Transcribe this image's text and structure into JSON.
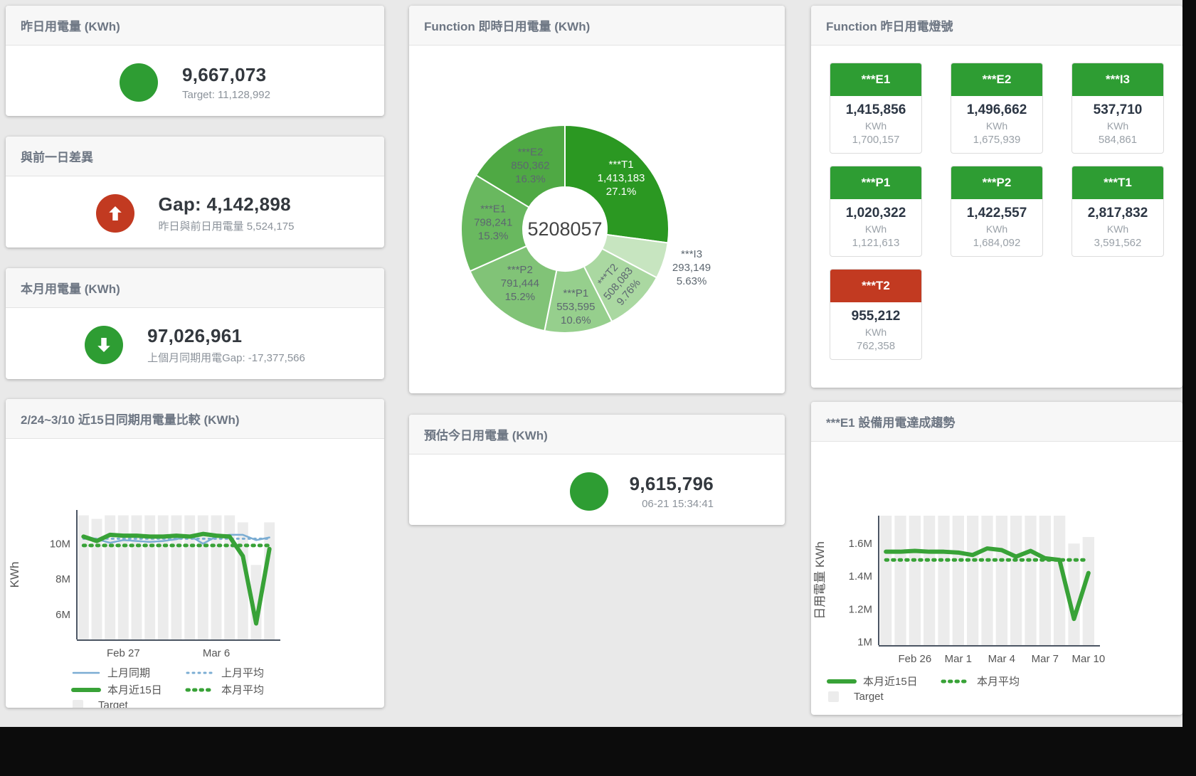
{
  "colors": {
    "green": "#2e9d33",
    "red": "#c23a21",
    "page_bg": "#e9e9e9",
    "card_header_bg": "#f7f7f7",
    "title_text": "#6d7683",
    "value_text": "#33383e",
    "muted_text": "#8b929a",
    "target_bar": "#ececec",
    "blue_line": "#7badd3",
    "green_line": "#38a237"
  },
  "kpi": {
    "yesterday": {
      "title": "昨日用電量 (KWh)",
      "value": "9,667,073",
      "subtitle": "Target: 11,128,992",
      "icon": "circle-green"
    },
    "gap": {
      "title": "與前一日差異",
      "value": "Gap: 4,142,898",
      "subtitle": "昨日與前日用電量 5,524,175",
      "icon": "arrow-up-red"
    },
    "month": {
      "title": "本月用電量 (KWh)",
      "value": "97,026,961",
      "subtitle": "上個月同期用電Gap: -17,377,566",
      "icon": "arrow-down-green"
    },
    "estimate": {
      "title": "預估今日用電量 (KWh)",
      "value": "9,615,796",
      "subtitle": "06-21 15:34:41",
      "icon": "circle-green"
    }
  },
  "status": {
    "title": "Function 昨日用電燈號",
    "tiles": [
      {
        "name": "***E1",
        "value": "1,415,856",
        "unit": "KWh",
        "target": "1,700,157",
        "status_color": "#2e9d33"
      },
      {
        "name": "***E2",
        "value": "1,496,662",
        "unit": "KWh",
        "target": "1,675,939",
        "status_color": "#2e9d33"
      },
      {
        "name": "***I3",
        "value": "537,710",
        "unit": "KWh",
        "target": "584,861",
        "status_color": "#2e9d33"
      },
      {
        "name": "***P1",
        "value": "1,020,322",
        "unit": "KWh",
        "target": "1,121,613",
        "status_color": "#2e9d33"
      },
      {
        "name": "***P2",
        "value": "1,422,557",
        "unit": "KWh",
        "target": "1,684,092",
        "status_color": "#2e9d33"
      },
      {
        "name": "***T1",
        "value": "2,817,832",
        "unit": "KWh",
        "target": "3,591,562",
        "status_color": "#2e9d33"
      },
      {
        "name": "***T2",
        "value": "955,212",
        "unit": "KWh",
        "target": "762,358",
        "status_color": "#c23a21"
      }
    ]
  },
  "chart_data": [
    {
      "type": "pie",
      "title": "Function 即時日用電量 (KWh)",
      "center_label": "5208057",
      "total": 5208057,
      "start": "top-clockwise",
      "segments": [
        {
          "name": "***T1",
          "value": 1413183,
          "value_str": "1,413,183",
          "pct": "27.1%",
          "color": "#2b9822",
          "label_style": "light",
          "label_r": 105
        },
        {
          "name": "***I3",
          "value": 293149,
          "value_str": "293,149",
          "pct": "5.63%",
          "color": "#c7e5c0",
          "label_r": 187,
          "outside": true
        },
        {
          "name": "***T2",
          "value": 508083,
          "value_str": "508,083",
          "pct": "9.76%",
          "color": "#aad8a1",
          "label_r": 110,
          "rotate": -50
        },
        {
          "name": "***P1",
          "value": 553595,
          "value_str": "553,595",
          "pct": "10.6%",
          "color": "#96cf8d",
          "label_r": 113
        },
        {
          "name": "***P2",
          "value": 791444,
          "value_str": "791,444",
          "pct": "15.2%",
          "color": "#81c377",
          "label_r": 101
        },
        {
          "name": "***E1",
          "value": 798241,
          "value_str": "798,241",
          "pct": "15.3%",
          "color": "#69b85f",
          "label_r": 101
        },
        {
          "name": "***E2",
          "value": 850362,
          "value_str": "850,362",
          "pct": "16.3%",
          "color": "#4fa944",
          "label_r": 99
        }
      ]
    },
    {
      "type": "line",
      "title": "2/24~3/10 近15日同期用電量比較 (KWh)",
      "ylabel": "KWh",
      "ylim": [
        4.6,
        11.9
      ],
      "yticks": [
        {
          "label": "6M",
          "v": 6
        },
        {
          "label": "8M",
          "v": 8
        },
        {
          "label": "10M",
          "v": 10
        }
      ],
      "x_count": 15,
      "xticks": [
        {
          "label": "Feb 27",
          "i": 3
        },
        {
          "label": "Mar 6",
          "i": 10
        }
      ],
      "target_name": "Target",
      "target_color": "#ececec",
      "target_bars": [
        11.6,
        11.4,
        11.6,
        11.6,
        11.6,
        11.6,
        11.6,
        11.6,
        11.6,
        11.6,
        11.6,
        11.6,
        11.2,
        8.8,
        11.2
      ],
      "series": [
        {
          "name": "上月同期",
          "color": "#7badd3",
          "style": "thin",
          "values": [
            10.45,
            10.25,
            10.05,
            10.2,
            10.15,
            10.1,
            10.15,
            10.25,
            10.45,
            10.0,
            10.4,
            10.5,
            10.5,
            10.2,
            10.35
          ]
        },
        {
          "name": "上月平均",
          "color": "#7badd3",
          "style": "dot",
          "values": [
            10.28,
            10.28,
            10.28,
            10.28,
            10.28,
            10.28,
            10.28,
            10.28,
            10.28,
            10.28,
            10.28,
            10.28,
            10.28,
            10.28,
            10.28
          ]
        },
        {
          "name": "本月近15日",
          "color": "#38a237",
          "style": "thick",
          "values": [
            10.4,
            10.15,
            10.5,
            10.45,
            10.45,
            10.4,
            10.4,
            10.45,
            10.4,
            10.55,
            10.45,
            10.4,
            9.3,
            5.5,
            9.7
          ]
        },
        {
          "name": "本月平均",
          "color": "#38a237",
          "style": "dot-thick",
          "values": [
            9.9,
            9.9,
            9.9,
            9.9,
            9.9,
            9.9,
            9.9,
            9.9,
            9.9,
            9.9,
            9.9,
            9.9,
            9.9,
            9.9,
            9.9
          ]
        }
      ],
      "legend": [
        {
          "label": "上月同期",
          "style": "thin",
          "color": "#7badd3"
        },
        {
          "label": "上月平均",
          "style": "dot",
          "color": "#7badd3"
        },
        {
          "label": "本月近15日",
          "style": "thick",
          "color": "#38a237"
        },
        {
          "label": "本月平均",
          "style": "dot-thick",
          "color": "#38a237"
        },
        {
          "label": "Target",
          "style": "bar",
          "color": "#ececec"
        }
      ]
    },
    {
      "type": "line",
      "title": "***E1 設備用電達成趨勢",
      "ylabel": "日用電量 KWh",
      "ylim": [
        0.98,
        1.77
      ],
      "yticks": [
        {
          "label": "1M",
          "v": 1
        },
        {
          "label": "1.2M",
          "v": 1.2
        },
        {
          "label": "1.4M",
          "v": 1.4
        },
        {
          "label": "1.6M",
          "v": 1.6
        }
      ],
      "x_count": 15,
      "xticks": [
        {
          "label": "Feb 26",
          "i": 2
        },
        {
          "label": "Mar 1",
          "i": 5
        },
        {
          "label": "Mar 4",
          "i": 8
        },
        {
          "label": "Mar 7",
          "i": 11
        },
        {
          "label": "Mar 10",
          "i": 14
        }
      ],
      "target_name": "Target",
      "target_color": "#ececec",
      "target_bars": [
        1.77,
        1.77,
        1.77,
        1.77,
        1.77,
        1.77,
        1.77,
        1.77,
        1.77,
        1.77,
        1.77,
        1.77,
        1.77,
        1.6,
        1.64
      ],
      "series": [
        {
          "name": "本月近15日",
          "color": "#38a237",
          "style": "thick",
          "values": [
            1.55,
            1.55,
            1.555,
            1.55,
            1.55,
            1.545,
            1.53,
            1.57,
            1.56,
            1.52,
            1.555,
            1.51,
            1.5,
            1.14,
            1.42
          ]
        },
        {
          "name": "本月平均",
          "color": "#38a237",
          "style": "dot-thick",
          "values": [
            1.5,
            1.5,
            1.5,
            1.5,
            1.5,
            1.5,
            1.5,
            1.5,
            1.5,
            1.5,
            1.5,
            1.5,
            1.5,
            1.5,
            1.5
          ]
        }
      ],
      "legend": [
        {
          "label": "本月近15日",
          "style": "thick",
          "color": "#38a237"
        },
        {
          "label": "本月平均",
          "style": "dot-thick",
          "color": "#38a237"
        },
        {
          "label": "Target",
          "style": "bar",
          "color": "#ececec"
        }
      ]
    }
  ]
}
